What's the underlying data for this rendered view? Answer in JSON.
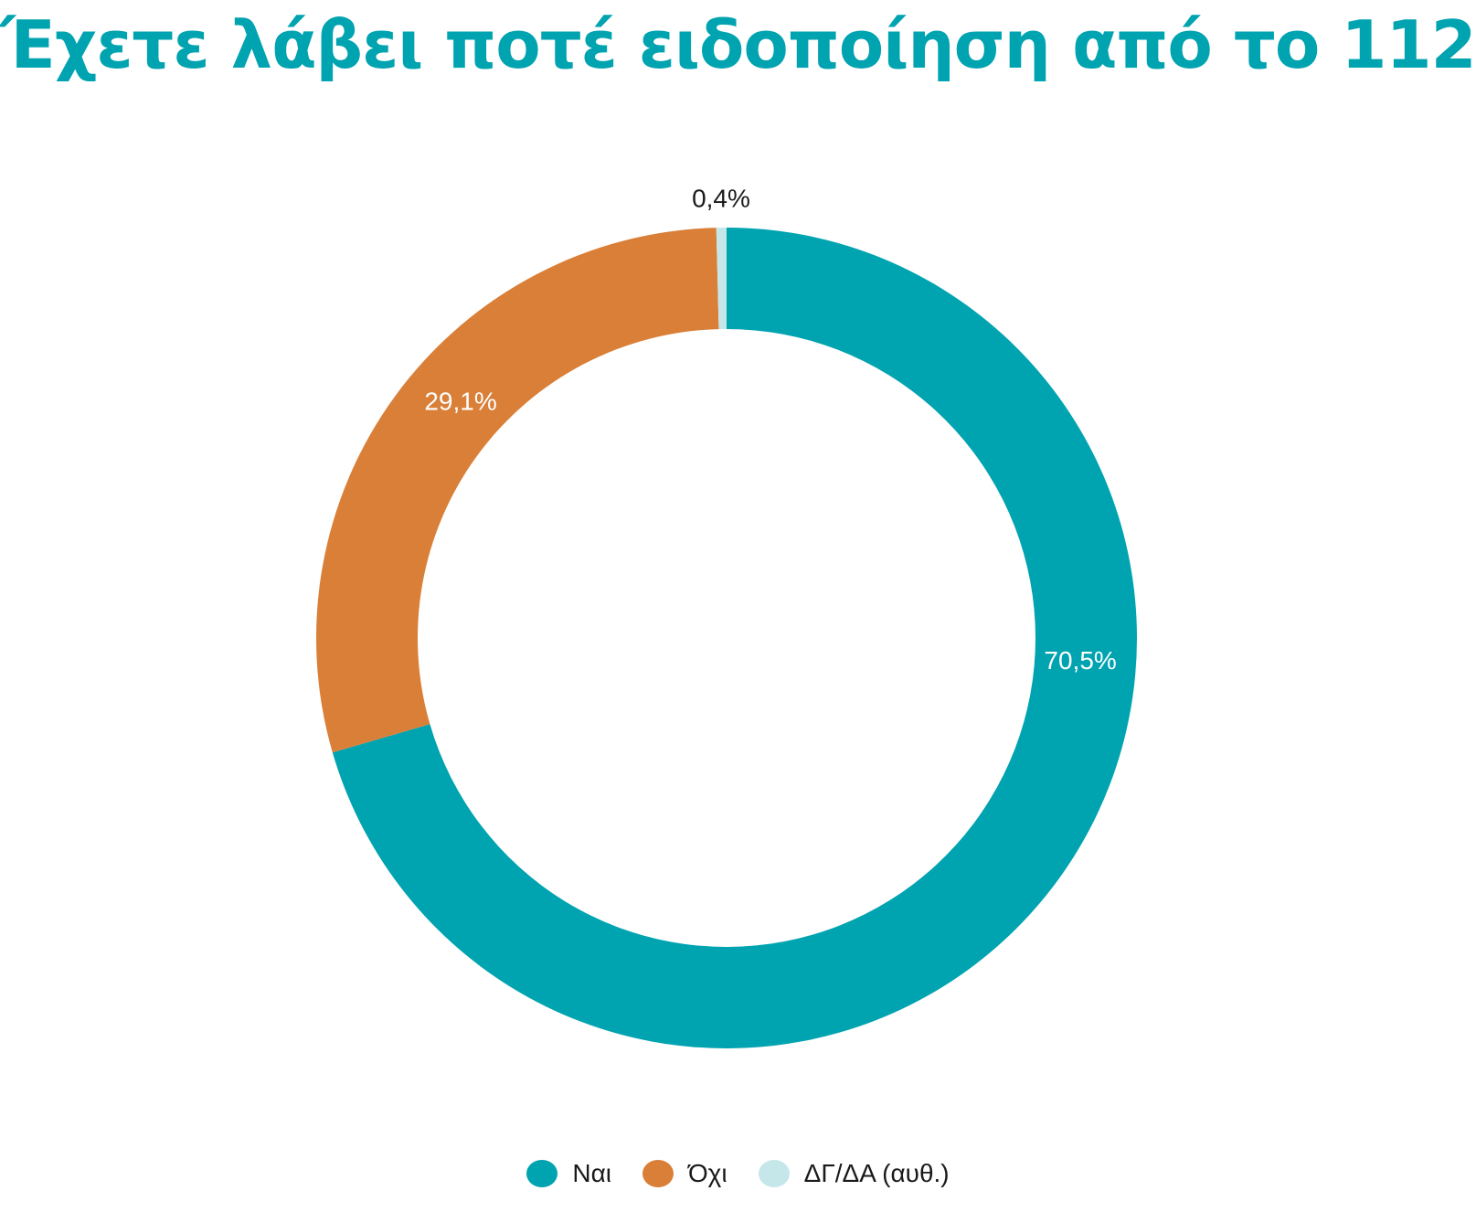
{
  "chart_data": {
    "type": "pie",
    "variant": "donut",
    "title": "Έχετε λάβει ποτέ ειδοποίηση από το 112;",
    "legend_position": "bottom",
    "slices": [
      {
        "label": "Ναι",
        "value": 70.5,
        "display": "70,5%",
        "color": "#00a3b0",
        "label_color": "#ffffff"
      },
      {
        "label": "Όχι",
        "value": 29.1,
        "display": "29,1%",
        "color": "#d97f38",
        "label_color": "#ffffff"
      },
      {
        "label": "ΔΓ/ΔΑ (αυθ.)",
        "value": 0.4,
        "display": "0,4%",
        "color": "#c6e7ea",
        "label_color": "#1a1a1a"
      }
    ]
  }
}
